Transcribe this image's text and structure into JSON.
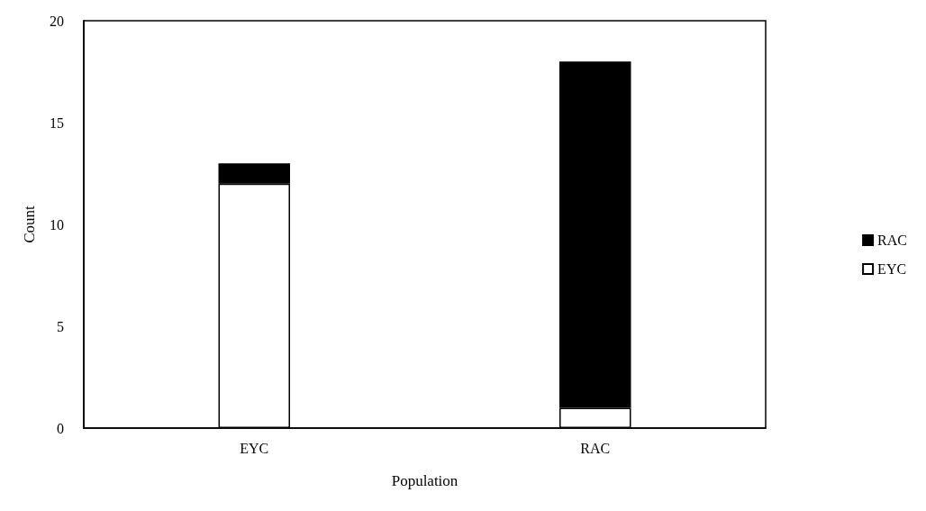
{
  "chart_data": {
    "type": "bar",
    "stacked": true,
    "xlabel": "Population",
    "ylabel": "Count",
    "categories": [
      "EYC",
      "RAC"
    ],
    "series": [
      {
        "name": "EYC",
        "color": "#ffffff",
        "values": [
          12,
          1
        ]
      },
      {
        "name": "RAC",
        "color": "#000000",
        "values": [
          1,
          17
        ]
      }
    ],
    "ylim": [
      0,
      20
    ],
    "yticks": [
      0,
      5,
      10,
      15,
      20
    ],
    "legend": "right"
  }
}
